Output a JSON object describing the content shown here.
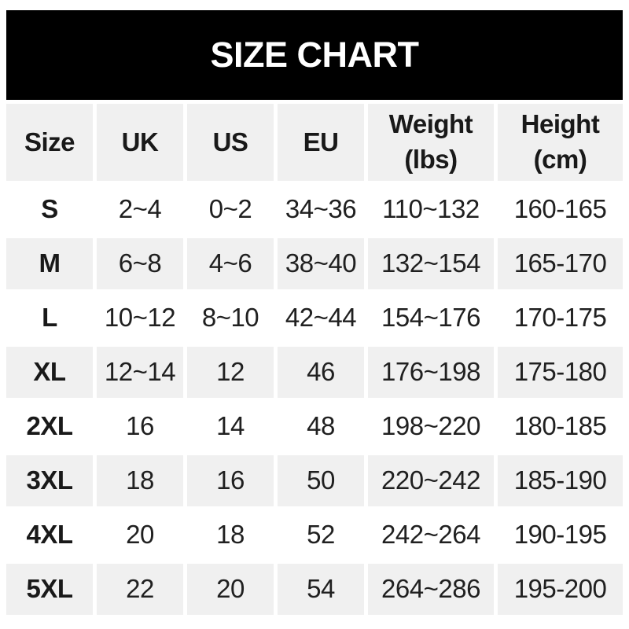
{
  "banner": {
    "title": "SIZE CHART"
  },
  "colors": {
    "banner_bg": "#000000",
    "banner_text": "#ffffff",
    "alt_row_bg": "#f0f0f0",
    "text": "#202020"
  },
  "chart_data": {
    "type": "table",
    "title": "SIZE CHART",
    "columns": [
      "Size",
      "UK",
      "US",
      "EU",
      "Weight (lbs)",
      "Height (cm)"
    ],
    "rows": [
      [
        "S",
        "2~4",
        "0~2",
        "34~36",
        "110~132",
        "160-165"
      ],
      [
        "M",
        "6~8",
        "4~6",
        "38~40",
        "132~154",
        "165-170"
      ],
      [
        "L",
        "10~12",
        "8~10",
        "42~44",
        "154~176",
        "170-175"
      ],
      [
        "XL",
        "12~14",
        "12",
        "46",
        "176~198",
        "175-180"
      ],
      [
        "2XL",
        "16",
        "14",
        "48",
        "198~220",
        "180-185"
      ],
      [
        "3XL",
        "18",
        "16",
        "50",
        "220~242",
        "185-190"
      ],
      [
        "4XL",
        "20",
        "18",
        "52",
        "242~264",
        "190-195"
      ],
      [
        "5XL",
        "22",
        "20",
        "54",
        "264~286",
        "195-200"
      ]
    ],
    "layout": {
      "alternating_row_shading": "header and even rows (M, XL, 3XL, 5XL) shaded, others white",
      "legend": "none",
      "grid": "white gutters between columns"
    }
  }
}
